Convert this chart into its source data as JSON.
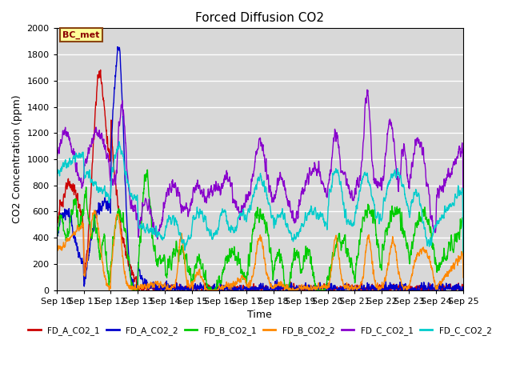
{
  "title": "Forced Diffusion CO2",
  "xlabel": "Time",
  "ylabel": "CO2 Concentration (ppm)",
  "ylim": [
    0,
    2000
  ],
  "bg_color": "#d8d8d8",
  "annotation_text": "BC_met",
  "annotation_color": "#8b0000",
  "annotation_bg": "#ffff99",
  "annotation_border": "#8b4513",
  "series": {
    "FD_A_CO2_1": {
      "color": "#cc0000",
      "lw": 1.0
    },
    "FD_A_CO2_2": {
      "color": "#0000cc",
      "lw": 1.0
    },
    "FD_B_CO2_1": {
      "color": "#00cc00",
      "lw": 1.0
    },
    "FD_B_CO2_2": {
      "color": "#ff8800",
      "lw": 1.0
    },
    "FD_C_CO2_1": {
      "color": "#8800cc",
      "lw": 1.0
    },
    "FD_C_CO2_2": {
      "color": "#00cccc",
      "lw": 1.0
    }
  },
  "xtick_labels": [
    "Sep 10",
    "Sep 11",
    "Sep 12",
    "Sep 13",
    "Sep 14",
    "Sep 15",
    "Sep 16",
    "Sep 17",
    "Sep 18",
    "Sep 19",
    "Sep 20",
    "Sep 21",
    "Sep 22",
    "Sep 23",
    "Sep 24",
    "Sep 25"
  ],
  "ytick_labels": [
    0,
    200,
    400,
    600,
    800,
    1000,
    1200,
    1400,
    1600,
    1800,
    2000
  ],
  "n_points": 2000,
  "days": 15
}
